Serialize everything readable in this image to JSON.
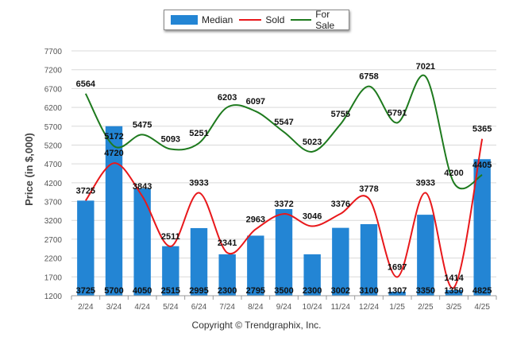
{
  "legend": {
    "median": "Median",
    "sold": "Sold",
    "for_sale": "For Sale"
  },
  "copyright": "Copyright © Trendgraphix, Inc.",
  "colors": {
    "median": "#2385d4",
    "sold": "#e8181b",
    "for_sale": "#1e7a1e",
    "grid": "#d9d9d9"
  },
  "chart_data": {
    "type": "bar",
    "categories": [
      "2/24",
      "3/24",
      "4/24",
      "5/24",
      "6/24",
      "7/24",
      "8/24",
      "9/24",
      "10/24",
      "11/24",
      "12/24",
      "1/25",
      "2/25",
      "3/25",
      "4/25"
    ],
    "ylabel": "Price (in $,000)",
    "ylim": [
      1200,
      7700
    ],
    "yticks": [
      1200,
      1700,
      2200,
      2700,
      3200,
      3700,
      4200,
      4700,
      5200,
      5700,
      6200,
      6700,
      7200,
      7700
    ],
    "grid": true,
    "legend_position": "top-center",
    "series": [
      {
        "name": "Median",
        "type": "bar",
        "values": [
          3725,
          5700,
          4050,
          2515,
          2995,
          2300,
          2795,
          3500,
          2300,
          3002,
          3100,
          1307,
          3350,
          1350,
          4825
        ]
      },
      {
        "name": "Sold",
        "type": "line",
        "values": [
          3725,
          4720,
          3843,
          2511,
          3933,
          2341,
          2963,
          3372,
          3046,
          3376,
          3778,
          1697,
          3933,
          1414,
          5365
        ]
      },
      {
        "name": "For Sale",
        "type": "line",
        "values": [
          6564,
          5172,
          5475,
          5093,
          5251,
          6203,
          6097,
          5547,
          5023,
          5755,
          6758,
          5791,
          7021,
          4200,
          4405
        ]
      }
    ]
  }
}
